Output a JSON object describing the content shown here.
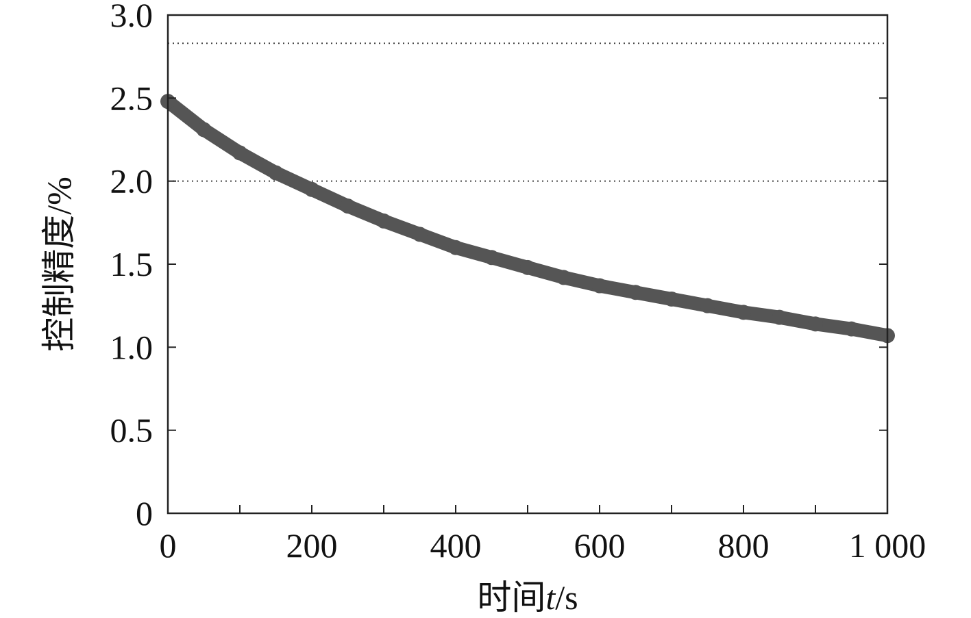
{
  "chart_data": {
    "type": "line",
    "title": "",
    "xlabel_prefix": "时间",
    "xlabel_var": "t",
    "xlabel_suffix": "/s",
    "ylabel": "控制精度/%",
    "xlim": [
      0,
      1000
    ],
    "ylim": [
      0,
      3.0
    ],
    "x_ticks": [
      0,
      100,
      200,
      300,
      400,
      500,
      600,
      700,
      800,
      900,
      1000
    ],
    "x_tick_labels": [
      "0",
      "200",
      "400",
      "600",
      "800",
      "1 000"
    ],
    "x_tick_label_values": [
      0,
      200,
      400,
      600,
      800,
      1000
    ],
    "y_ticks": [
      0,
      0.5,
      1.0,
      1.5,
      2.0,
      2.5,
      3.0
    ],
    "y_tick_labels": [
      "0",
      "0.5",
      "1.0",
      "1.5",
      "2.0",
      "2.5",
      "3.0"
    ],
    "grid": false,
    "reference_lines": [
      {
        "y": 2.83,
        "style": "dotted"
      },
      {
        "y": 2.0,
        "style": "dotted"
      }
    ],
    "series": [
      {
        "color": "#555555",
        "x": [
          0,
          50,
          100,
          150,
          200,
          250,
          300,
          350,
          400,
          450,
          500,
          550,
          600,
          650,
          700,
          750,
          800,
          850,
          900,
          950,
          1000
        ],
        "y": [
          2.48,
          2.31,
          2.17,
          2.05,
          1.95,
          1.85,
          1.76,
          1.68,
          1.6,
          1.54,
          1.48,
          1.42,
          1.37,
          1.33,
          1.29,
          1.25,
          1.21,
          1.18,
          1.14,
          1.11,
          1.07
        ]
      }
    ]
  }
}
